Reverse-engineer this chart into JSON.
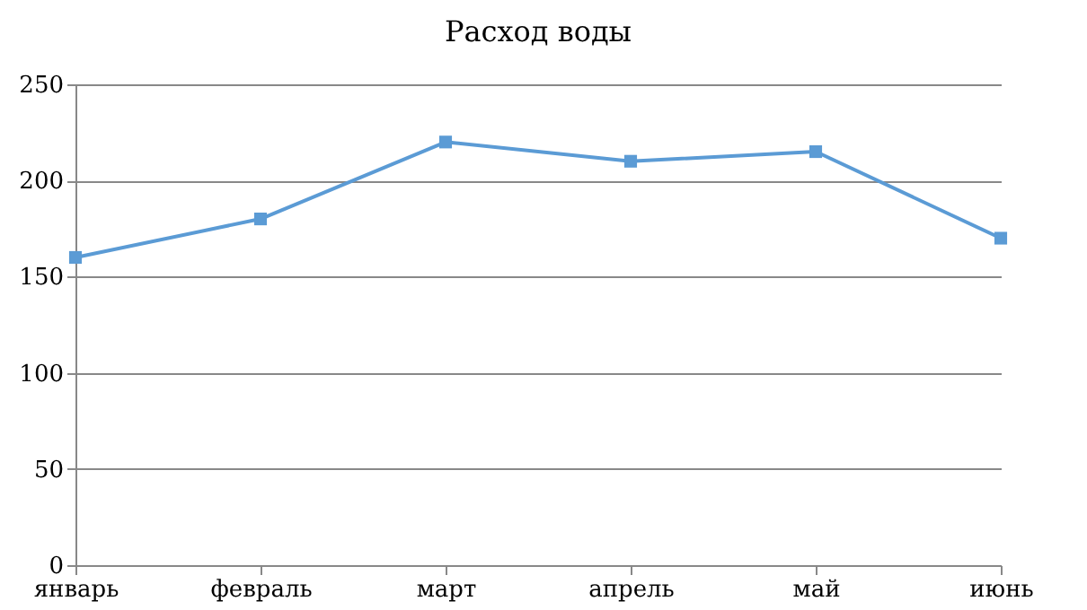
{
  "chart_data": {
    "type": "line",
    "title": "Расход воды",
    "categories": [
      "январь",
      "февраль",
      "март",
      "апрель",
      "май",
      "июнь"
    ],
    "series": [
      {
        "color": "#5b9bd5",
        "values": [
          160,
          180,
          220,
          210,
          215,
          170
        ]
      }
    ],
    "ylim": [
      0,
      250
    ],
    "yticks": [
      0,
      50,
      100,
      150,
      200,
      250
    ],
    "grid": "y",
    "marker": "square",
    "line_style": "solid"
  }
}
